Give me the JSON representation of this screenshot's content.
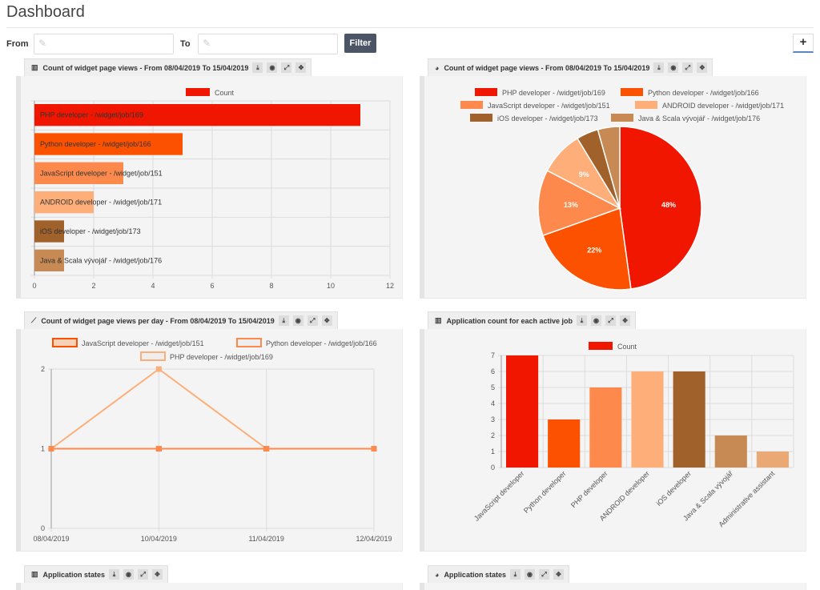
{
  "page": {
    "title": "Dashboard"
  },
  "filter": {
    "from_label": "From",
    "to_label": "To",
    "from_value": "",
    "to_value": "",
    "button_label": "Filter",
    "add_label": "+"
  },
  "panels": {
    "views_bar": {
      "title": "Count of widget page views - From 08/04/2019 To 15/04/2019"
    },
    "views_pie": {
      "title": "Count of widget page views - From 08/04/2019 To 15/04/2019"
    },
    "views_per_day": {
      "title": "Count of widget page views per day - From 08/04/2019 To 15/04/2019"
    },
    "applications_per_job": {
      "title": "Application count for each active job"
    },
    "states_bar": {
      "title": "Application states"
    },
    "states_pie": {
      "title": "Application states"
    }
  },
  "colors": {
    "c1": "#f01600",
    "c2": "#fc5200",
    "c3": "#fd8a4c",
    "c4": "#fdae79",
    "c5": "#a0612b",
    "c6": "#c78a55",
    "c7": "#e9a874"
  },
  "chart_data": [
    {
      "type": "bar",
      "orientation": "horizontal",
      "categories": [
        "PHP developer - /widget/job/169",
        "Python developer - /widget/job/166",
        "JavaScript developer - /widget/job/151",
        "ANDROID developer - /widget/job/171",
        "iOS developer - /widget/job/173",
        "Java & Scala vývojář - /widget/job/176"
      ],
      "series": [
        {
          "name": "Count",
          "values": [
            11,
            5,
            3,
            2,
            1,
            1
          ]
        }
      ],
      "xlim": [
        0,
        12
      ],
      "xticks": [
        "0",
        "2",
        "4",
        "6",
        "8",
        "10",
        "12"
      ],
      "legend": "top",
      "grid": true
    },
    {
      "type": "pie",
      "labels": [
        "PHP developer - /widget/job/169",
        "Python developer - /widget/job/166",
        "JavaScript developer - /widget/job/151",
        "ANDROID developer - /widget/job/171",
        "iOS developer - /widget/job/173",
        "Java & Scala vývojář - /widget/job/176"
      ],
      "values": [
        11,
        5,
        3,
        2,
        1,
        1
      ],
      "slice_labels": [
        "48%",
        "22%",
        "13%",
        "9%",
        "",
        ""
      ],
      "legend": "top"
    },
    {
      "type": "line",
      "x": [
        "08/04/2019",
        "10/04/2019",
        "11/04/2019",
        "12/04/2019"
      ],
      "series": [
        {
          "name": "JavaScript developer - /widget/job/151",
          "values": [
            1,
            1,
            1,
            null
          ]
        },
        {
          "name": "Python developer - /widget/job/166",
          "values": [
            1,
            1,
            1,
            1
          ]
        },
        {
          "name": "PHP developer - /widget/job/169",
          "values": [
            1,
            2,
            1,
            null
          ]
        }
      ],
      "ylim": [
        0,
        2
      ],
      "yticks": [
        "0",
        "1",
        "2"
      ],
      "legend": "top",
      "grid": true
    },
    {
      "type": "bar",
      "categories": [
        "JavaScript developer",
        "Python developer",
        "PHP developer",
        "ANDROID developer",
        "iOS developer",
        "Java & Scala vývojář",
        "Administrative assistant"
      ],
      "series": [
        {
          "name": "Count",
          "values": [
            7,
            3,
            5,
            6,
            6,
            2,
            1
          ]
        }
      ],
      "ylim": [
        0,
        7
      ],
      "yticks": [
        "0",
        "1",
        "2",
        "3",
        "4",
        "5",
        "6",
        "7"
      ],
      "legend": "top",
      "grid": true
    }
  ]
}
